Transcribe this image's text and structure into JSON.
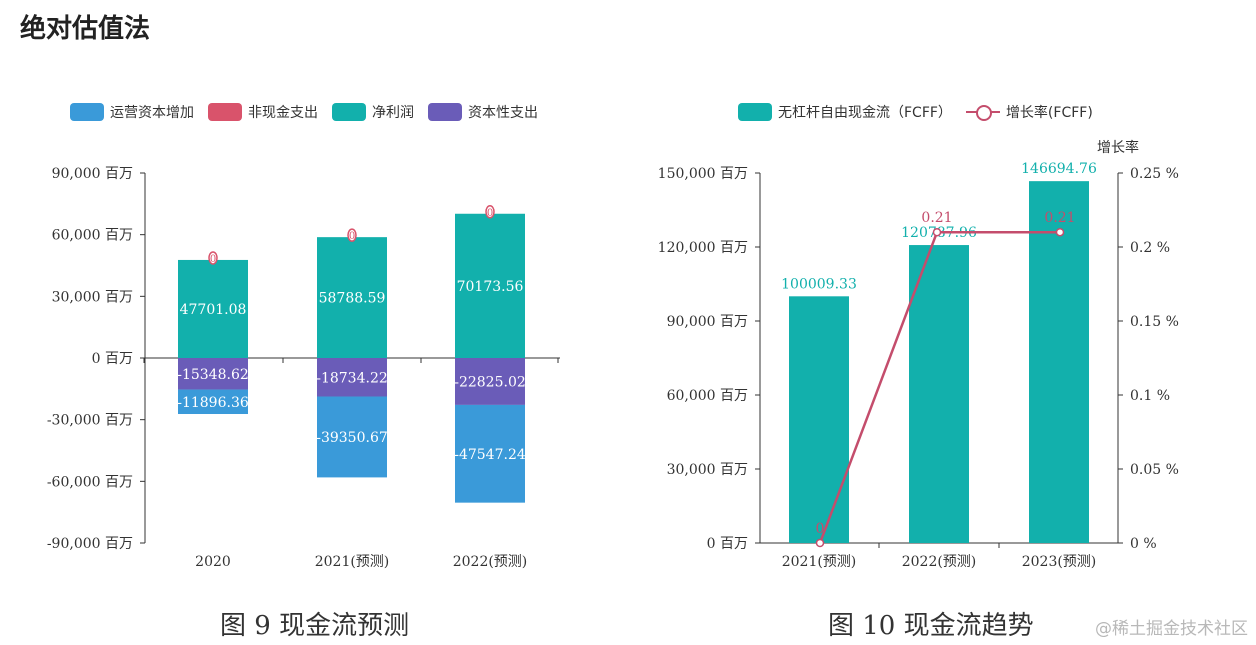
{
  "page_title": "绝对估值法",
  "watermark": "@稀土掘金技术社区",
  "captions": {
    "left": "图 9 现金流预测",
    "right": "图 10 现金流趋势"
  },
  "legend_left": [
    {
      "label": "运营资本增加",
      "color": "#3a9ad9"
    },
    {
      "label": "非现金支出",
      "color": "#d9536b"
    },
    {
      "label": "净利润",
      "color": "#12b0ac"
    },
    {
      "label": "资本性支出",
      "color": "#6a5cb8"
    }
  ],
  "legend_right": [
    {
      "label": "无杠杆自由现金流（FCFF）",
      "color": "#12b0ac"
    },
    {
      "label": "增长率(FCFF)",
      "color": "#c44d6c"
    }
  ],
  "chart_data": [
    {
      "type": "bar",
      "stacked": true,
      "categories": [
        "2020",
        "2021(预测)",
        "2022(预测)"
      ],
      "series": [
        {
          "name": "净利润",
          "values": [
            47701.08,
            58788.59,
            70173.56
          ],
          "labels": [
            "47701.08",
            "58788.59",
            "70173.56"
          ],
          "color": "#12b0ac"
        },
        {
          "name": "非现金支出",
          "values": [
            0,
            0,
            0
          ],
          "labels": [
            "0",
            "0",
            "0"
          ],
          "color": "#d9536b"
        },
        {
          "name": "资本性支出",
          "values": [
            -15348.62,
            -18734.22,
            -22825.02
          ],
          "labels": [
            "-15348.62",
            "-18734.22",
            "-22825.02"
          ],
          "color": "#6a5cb8"
        },
        {
          "name": "运营资本增加",
          "values": [
            -11896.36,
            -39350.67,
            -47547.24
          ],
          "labels": [
            "-11896.36",
            "-39350.67",
            "-47547.24"
          ],
          "color": "#3a9ad9"
        }
      ],
      "ylim": [
        -90000,
        90000
      ],
      "yticks": [
        90000,
        60000,
        30000,
        0,
        -30000,
        -60000,
        -90000
      ],
      "ytick_labels": [
        "90,000 百万",
        "60,000 百万",
        "30,000 百万",
        "0 百万",
        "-30,000 百万",
        "-60,000 百万",
        "-90,000 百万"
      ],
      "legend": "top"
    },
    {
      "type": "bar",
      "categories": [
        "2021(预测)",
        "2022(预测)",
        "2023(预测)"
      ],
      "series": [
        {
          "name": "无杠杆自由现金流（FCFF）",
          "values": [
            100009.33,
            120787.96,
            146694.76
          ],
          "labels": [
            "100009.33",
            "120787.96",
            "146694.76"
          ],
          "color": "#12b0ac"
        },
        {
          "name": "增长率(FCFF)",
          "type": "line",
          "axis": "right",
          "values": [
            0,
            0.21,
            0.21
          ],
          "labels": [
            "0",
            "0.21",
            "0.21"
          ],
          "color": "#c44d6c"
        }
      ],
      "ylim": [
        0,
        150000
      ],
      "yticks": [
        150000,
        120000,
        90000,
        60000,
        30000,
        0
      ],
      "ytick_labels": [
        "150,000 百万",
        "120,000 百万",
        "90,000 百万",
        "60,000 百万",
        "30,000 百万",
        "0 百万"
      ],
      "y2lim": [
        0,
        0.25
      ],
      "y2ticks": [
        0.25,
        0.2,
        0.15,
        0.1,
        0.05,
        0
      ],
      "y2tick_labels": [
        "0.25 %",
        "0.2 %",
        "0.15 %",
        "0.1 %",
        "0.05 %",
        "0 %"
      ],
      "y2label": "增长率",
      "legend": "top"
    }
  ]
}
